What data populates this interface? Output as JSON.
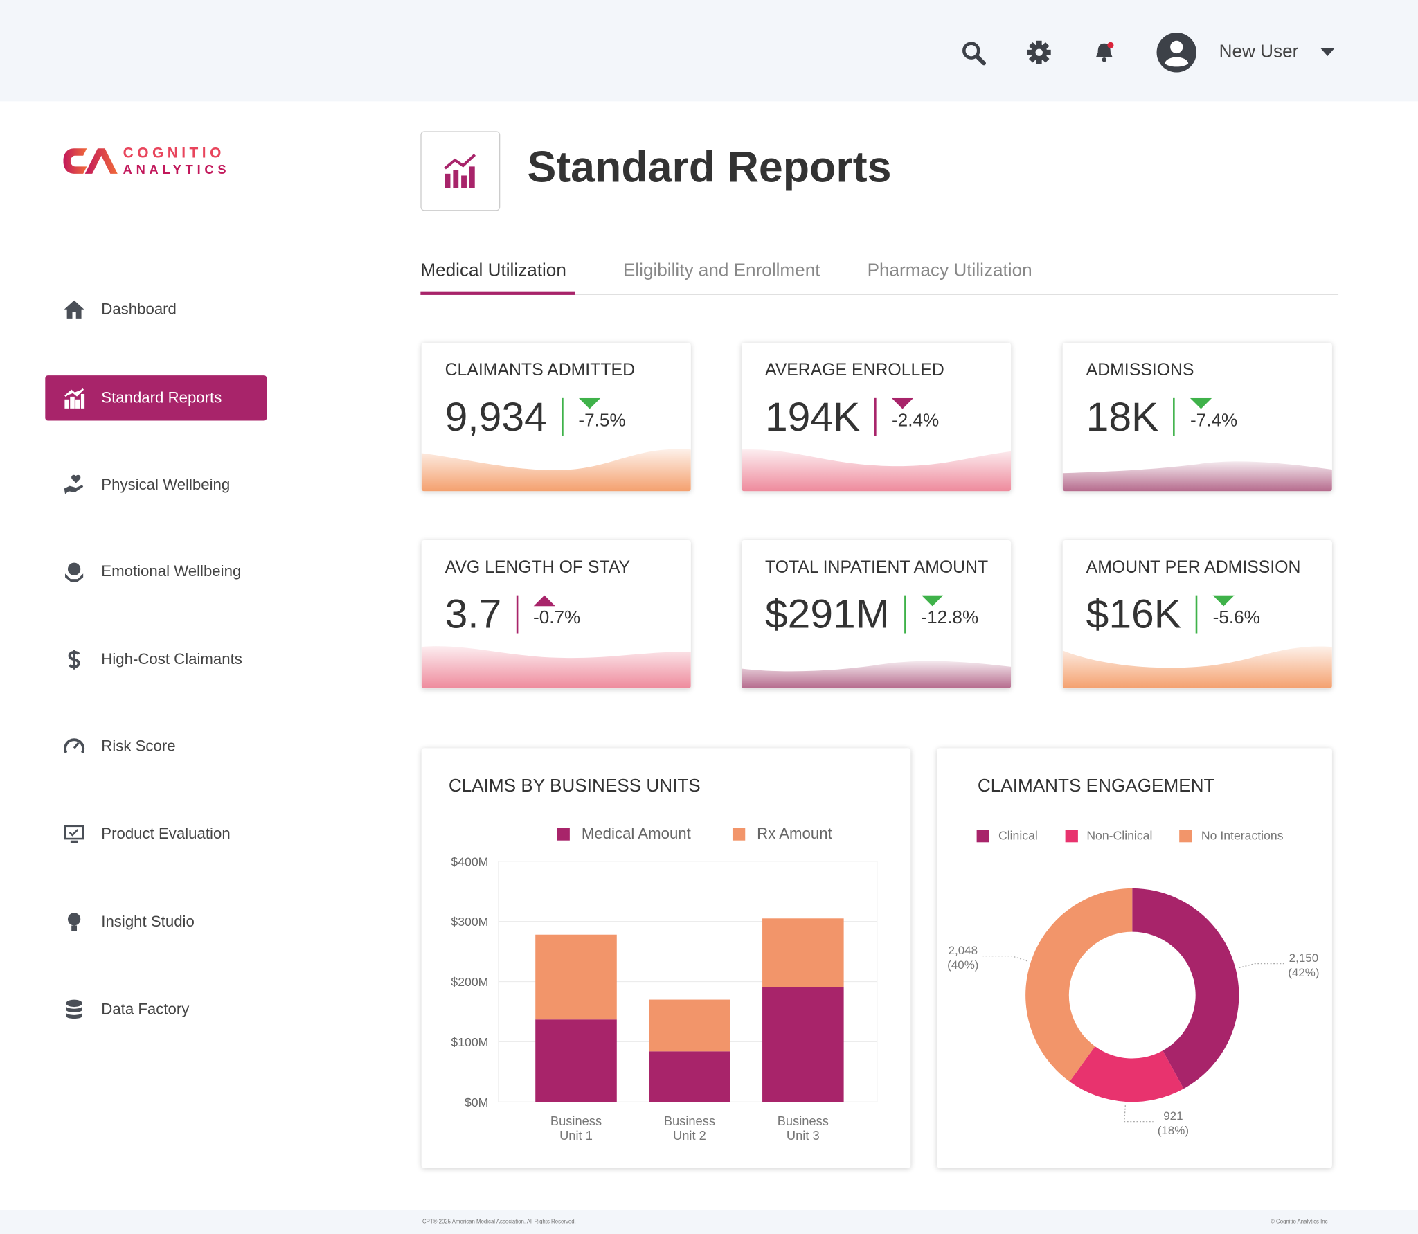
{
  "header": {
    "user": "New User"
  },
  "logo": {
    "line1": "COGNITIO",
    "line2": "ANALYTICS"
  },
  "nav": {
    "items": [
      "Dashboard",
      "Standard Reports",
      "Physical Wellbeing",
      "Emotional Wellbeing",
      "High-Cost Claimants",
      "Risk Score",
      "Product Evaluation",
      "Insight Studio",
      "Data Factory"
    ],
    "active_index": 1
  },
  "page": {
    "title": "Standard Reports"
  },
  "tabs": {
    "items": [
      "Medical Utilization",
      "Eligibility and Enrollment",
      "Pharmacy Utilization"
    ],
    "active_index": 0
  },
  "kpis": [
    {
      "title": "CLAIMANTS ADMITTED",
      "value": "9,934",
      "change": "-7.5%",
      "direction": "down",
      "indicator_color": "#3fb24a",
      "wave_color": "#f4a06e"
    },
    {
      "title": "AVERAGE ENROLLED",
      "value": "194K",
      "change": "-2.4%",
      "direction": "down",
      "indicator_color": "#a8246a",
      "wave_color": "#ee8a9c"
    },
    {
      "title": "ADMISSIONS",
      "value": "18K",
      "change": "-7.4%",
      "direction": "down",
      "indicator_color": "#3fb24a",
      "wave_color": "#b56a8c"
    },
    {
      "title": "AVG LENGTH OF STAY",
      "value": "3.7",
      "change": "-0.7%",
      "direction": "up",
      "indicator_color": "#a8246a",
      "wave_color": "#ee8a9c"
    },
    {
      "title": "TOTAL INPATIENT AMOUNT",
      "value": "$291M",
      "change": "-12.8%",
      "direction": "down",
      "indicator_color": "#3fb24a",
      "wave_color": "#b56a8c"
    },
    {
      "title": "AMOUNT PER ADMISSION",
      "value": "$16K",
      "change": "-5.6%",
      "direction": "down",
      "indicator_color": "#3fb24a",
      "wave_color": "#f4a06e"
    }
  ],
  "chart_data": [
    {
      "type": "bar",
      "stacked": true,
      "title": "CLAIMS BY BUSINESS UNITS",
      "categories": [
        "Business Unit 1",
        "Business Unit 2",
        "Business Unit 3"
      ],
      "series": [
        {
          "name": "Medical Amount",
          "color": "#a8246a",
          "values": [
            137,
            84,
            191
          ]
        },
        {
          "name": "Rx Amount",
          "color": "#f2956a",
          "values": [
            141,
            86,
            114
          ]
        }
      ],
      "ylim": [
        0,
        400
      ],
      "yticks": [
        {
          "value": 0,
          "label": "$0M"
        },
        {
          "value": 100,
          "label": "$100M"
        },
        {
          "value": 200,
          "label": "$200M"
        },
        {
          "value": 300,
          "label": "$300M"
        },
        {
          "value": 400,
          "label": "$400M"
        }
      ],
      "grid": true
    },
    {
      "type": "pie",
      "donut": true,
      "title": "CLAIMANTS ENGAGEMENT",
      "categories": [
        "Clinical",
        "Non-Clinical",
        "No Interactions"
      ],
      "values": [
        2150,
        921,
        2048
      ],
      "value_labels": [
        "2,150",
        "921",
        "2,048"
      ],
      "percent_labels": [
        "(42%)",
        "(18%)",
        "(40%)"
      ],
      "colors": [
        "#a8246a",
        "#e8336e",
        "#f2956a"
      ]
    }
  ],
  "footer": {
    "left": "CPT® 2025 American Medical Association. All Rights Reserved.",
    "right": "© Cognitio Analytics Inc"
  }
}
